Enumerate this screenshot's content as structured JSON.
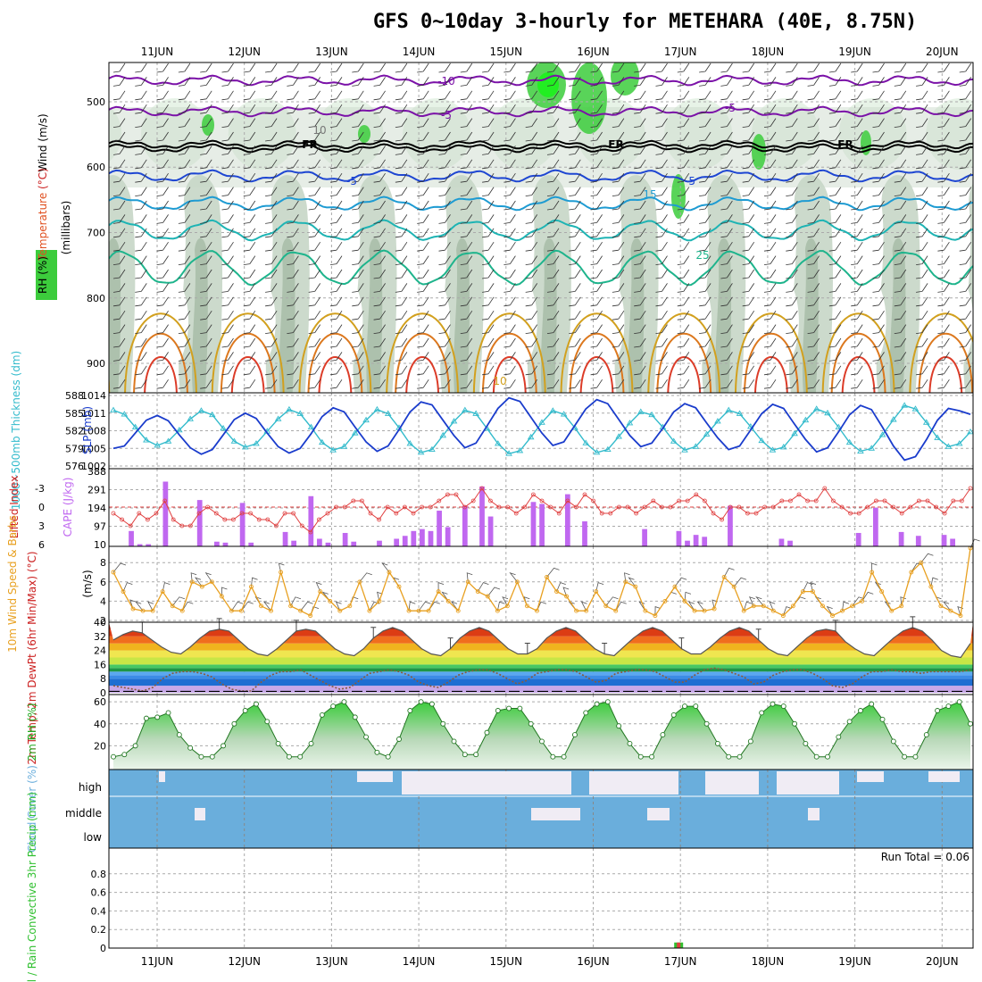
{
  "title": "GFS 0~10day 3-hourly for METEHARA (40E, 8.75N)",
  "colors": {
    "temp_neg": "#7b12a8",
    "temp_cold": "#1e46d2",
    "temp_mid": "#1e9bd2",
    "temp_warm": "#1eb4b4",
    "temp_warmer": "#1eb48c",
    "temp_hot1": "#d2a01e",
    "temp_hot2": "#dc781e",
    "temp_hot3": "#dc3c28",
    "rh_green": "#3ccc3c",
    "thickness": "#33bbcc",
    "slp": "#1a3ccc",
    "lifted_index": "#e04040",
    "cape": "#c068f0",
    "wind_speed": "#e8a020",
    "rh2m": "#30b830",
    "cloud": "#6aaedc",
    "cloud_clear": "#f0ecf4",
    "precip_total": "#30c030",
    "precip_conv": "#e04040"
  },
  "chart_data": [
    {
      "type": "heatmap",
      "name": "upper-air cross section",
      "x_dates": [
        "11JUN",
        "12JUN",
        "13JUN",
        "14JUN",
        "15JUN",
        "16JUN",
        "17JUN",
        "18JUN",
        "19JUN",
        "20JUN"
      ],
      "ylabel": "(millibars)",
      "y_ticks": [
        500,
        600,
        700,
        800,
        900
      ],
      "ylim": [
        440,
        945
      ],
      "side_labels": [
        "Wind (m/s)",
        "Temperature (°C)",
        "RH (%)"
      ],
      "contour_labels": [
        "-10",
        "-5",
        "-5",
        "FR",
        "FR",
        "FR",
        "-5",
        "-5",
        "10",
        "15",
        "25",
        "10"
      ],
      "freezing_level_mb": 570
    },
    {
      "type": "line",
      "name": "thickness and SLP",
      "ylabel_left": "1000~500mb Thickness (dm)",
      "ylabel_right": "SLP (mb)",
      "left_ticks": [
        "588",
        "585",
        "582",
        "579",
        "576"
      ],
      "right_ticks": [
        "1014",
        "1011",
        "1008",
        "1005",
        "1002"
      ],
      "series": [
        {
          "name": "1000~500mb Thickness",
          "values": [
            585.5,
            584.8,
            582.6,
            580.4,
            579.5,
            580.2,
            582.1,
            584.0,
            585.4,
            584.7,
            582.4,
            580.2,
            579.2,
            579.8,
            581.9,
            584.0,
            585.6,
            584.9,
            582.6,
            580.0,
            578.7,
            579.3,
            581.6,
            583.8,
            585.6,
            584.9,
            582.5,
            579.8,
            578.3,
            578.8,
            581.2,
            583.6,
            585.5,
            584.9,
            582.4,
            579.8,
            578.1,
            578.6,
            580.9,
            583.4,
            585.4,
            584.8,
            582.5,
            579.9,
            578.3,
            578.8,
            581.0,
            583.3,
            585.2,
            584.7,
            582.6,
            580.2,
            578.7,
            579.3,
            581.4,
            583.6,
            585.5,
            584.9,
            582.7,
            580.3,
            578.7,
            579.2,
            581.5,
            583.8,
            585.7,
            585.0,
            582.6,
            580.0,
            578.5,
            579.0,
            581.3,
            583.9,
            586.3,
            585.7,
            583.4,
            580.8,
            579.3,
            579.8,
            581.8
          ]
        },
        {
          "name": "SLP",
          "values": [
            1005.0,
            1005.4,
            1007.6,
            1009.8,
            1010.6,
            1009.7,
            1007.3,
            1005.1,
            1004.0,
            1004.8,
            1007.3,
            1009.9,
            1011.0,
            1010.1,
            1007.6,
            1005.3,
            1004.2,
            1005.0,
            1007.5,
            1010.4,
            1011.9,
            1011.2,
            1008.6,
            1006.1,
            1004.5,
            1005.4,
            1008.2,
            1011.2,
            1012.9,
            1012.4,
            1009.8,
            1007.2,
            1005.1,
            1005.9,
            1008.8,
            1011.8,
            1013.6,
            1013.0,
            1010.3,
            1007.6,
            1005.5,
            1006.1,
            1008.9,
            1011.7,
            1013.3,
            1012.6,
            1009.9,
            1007.2,
            1005.3,
            1005.9,
            1008.4,
            1011.2,
            1012.6,
            1011.9,
            1009.3,
            1006.8,
            1004.8,
            1005.4,
            1008.1,
            1010.9,
            1012.5,
            1011.8,
            1009.1,
            1006.5,
            1004.4,
            1005.1,
            1007.8,
            1010.7,
            1012.3,
            1011.6,
            1008.6,
            1005.4,
            1003.0,
            1003.6,
            1006.5,
            1009.8,
            1011.8,
            1011.4,
            1010.8
          ]
        }
      ]
    },
    {
      "type": "bar",
      "name": "lifted index and CAPE",
      "ylabel_left": "Lifted Index",
      "ylabel_right": "CAPE (J/kg)",
      "left_ticks": [
        "-3",
        "0",
        "3",
        "6"
      ],
      "right_ticks": [
        "388",
        "291",
        "194",
        "97",
        "10"
      ],
      "series": [
        {
          "name": "CAPE",
          "type": "bar",
          "values": [
            10,
            10,
            80,
            12,
            12,
            10,
            335,
            10,
            10,
            10,
            240,
            10,
            25,
            20,
            10,
            225,
            20,
            10,
            10,
            10,
            75,
            30,
            10,
            260,
            40,
            20,
            10,
            70,
            25,
            10,
            10,
            30,
            10,
            40,
            55,
            80,
            90,
            80,
            185,
            100,
            10,
            210,
            10,
            310,
            155,
            10,
            10,
            10,
            10,
            230,
            220,
            10,
            10,
            270,
            10,
            130,
            10,
            10,
            10,
            10,
            10,
            10,
            90,
            10,
            10,
            10,
            80,
            30,
            60,
            50,
            10,
            10,
            210,
            10,
            10,
            10,
            10,
            10,
            40,
            30,
            10,
            10,
            10,
            10,
            10,
            10,
            10,
            70,
            10,
            200,
            10,
            10,
            75,
            10,
            55,
            10,
            10,
            60,
            40,
            10,
            10
          ]
        },
        {
          "name": "Lifted Index",
          "type": "line",
          "values": [
            1,
            2,
            3,
            1,
            2,
            1,
            -1,
            2,
            3,
            3,
            1,
            0,
            1,
            2,
            2,
            1,
            1,
            2,
            2,
            3,
            1,
            1,
            3,
            4,
            2,
            1,
            0,
            0,
            -1,
            -1,
            1,
            2,
            0,
            1,
            0,
            1,
            0,
            0,
            -1,
            -2,
            -2,
            0,
            -1,
            -3,
            -1,
            0,
            0,
            1,
            0,
            -2,
            -1,
            0,
            1,
            -1,
            0,
            -2,
            -1,
            1,
            1,
            0,
            0,
            1,
            0,
            -1,
            0,
            0,
            -1,
            -1,
            -2,
            -1,
            1,
            2,
            0,
            0,
            1,
            1,
            0,
            0,
            -1,
            -1,
            -2,
            -1,
            -1,
            -3,
            -1,
            0,
            1,
            1,
            0,
            -1,
            -1,
            0,
            1,
            0,
            -1,
            -1,
            0,
            1,
            -1,
            -1,
            -3
          ]
        }
      ]
    },
    {
      "type": "line",
      "name": "10m wind",
      "ylabel_left": "10m Wind Speed & Barbs",
      "ylabel_right": "(m/s)",
      "y_ticks": [
        "8",
        "6",
        "4",
        "2"
      ],
      "ylim": [
        2,
        9.5
      ],
      "series": [
        {
          "name": "10m Wind Speed",
          "values": [
            7,
            5,
            3.2,
            3,
            3,
            5,
            3.5,
            3,
            6,
            5.5,
            6,
            4.5,
            3,
            3,
            5.5,
            3.5,
            3,
            7,
            3.5,
            3,
            2.5,
            5,
            4,
            3,
            3.5,
            6,
            3,
            4,
            7,
            5.5,
            3,
            3,
            3,
            5,
            4,
            3,
            6,
            5,
            4.5,
            3,
            3.5,
            6,
            3.5,
            3,
            6.5,
            5,
            4.5,
            3,
            3,
            5,
            3.5,
            3,
            6,
            5.5,
            3,
            2.5,
            4,
            5.5,
            4,
            3,
            3,
            3.2,
            6.5,
            5.5,
            3,
            3.5,
            3.5,
            3,
            2.5,
            3.5,
            5,
            5,
            3.5,
            2.5,
            3,
            3.5,
            4,
            7,
            5,
            3,
            3.5,
            7,
            8,
            5.5,
            3.5,
            3,
            2.5,
            9.5
          ]
        }
      ]
    },
    {
      "type": "area",
      "name": "2m temperature and dew point",
      "ylabel": "2m Temp, 2m DewPt (6hr Min/Max) (°C)",
      "y_ticks": [
        "40",
        "32",
        "24",
        "16",
        "8",
        "0"
      ],
      "ylim": [
        0,
        40
      ],
      "series": [
        {
          "name": "2m Temp",
          "values": [
            30,
            33,
            35,
            34,
            30,
            26,
            23,
            22,
            26,
            31,
            35,
            36,
            35,
            30,
            25,
            22,
            21,
            25,
            30,
            35,
            36,
            35,
            30,
            25,
            22,
            21,
            25,
            31,
            35,
            37,
            35,
            30,
            25,
            22,
            21,
            25,
            31,
            35,
            37,
            35,
            30,
            25,
            22,
            22,
            25,
            31,
            35,
            37,
            35,
            30,
            25,
            22,
            21,
            26,
            31,
            35,
            37,
            35,
            30,
            25,
            22,
            22,
            26,
            31,
            35,
            37,
            35,
            30,
            25,
            22,
            21,
            26,
            31,
            35,
            36,
            35,
            29,
            25,
            22,
            21,
            26,
            31,
            35,
            37,
            35,
            30,
            24,
            21,
            20,
            28
          ]
        },
        {
          "name": "2m DewPt",
          "values": [
            4,
            3,
            2,
            1,
            3,
            8,
            11,
            12,
            12,
            11,
            9,
            5,
            2,
            1,
            1,
            6,
            10,
            12,
            12,
            13,
            10,
            7,
            4,
            2,
            3,
            7,
            11,
            12,
            13,
            12,
            10,
            6,
            4,
            3,
            6,
            10,
            12,
            13,
            13,
            11,
            8,
            5,
            7,
            11,
            12,
            13,
            13,
            12,
            9,
            6,
            7,
            11,
            12,
            13,
            13,
            12,
            9,
            6,
            6,
            10,
            13,
            14,
            13,
            11,
            9,
            5,
            6,
            10,
            12,
            13,
            13,
            11,
            8,
            4,
            3,
            5,
            9,
            12,
            12,
            13,
            12,
            12,
            11,
            12,
            12,
            12,
            12,
            13
          ]
        }
      ]
    },
    {
      "type": "area",
      "name": "2m relative humidity",
      "ylabel": "2m RH (%)",
      "y_ticks": [
        "60",
        "40",
        "20"
      ],
      "ylim": [
        0,
        65
      ],
      "values": [
        10,
        12,
        20,
        45,
        46,
        50,
        30,
        18,
        10,
        10,
        20,
        40,
        52,
        58,
        42,
        22,
        10,
        10,
        22,
        48,
        56,
        60,
        46,
        28,
        14,
        10,
        26,
        52,
        60,
        58,
        40,
        24,
        12,
        12,
        32,
        52,
        54,
        54,
        40,
        24,
        10,
        10,
        30,
        50,
        58,
        60,
        38,
        22,
        10,
        10,
        30,
        48,
        56,
        56,
        40,
        22,
        10,
        10,
        24,
        50,
        58,
        56,
        40,
        22,
        10,
        10,
        28,
        42,
        52,
        58,
        44,
        24,
        10,
        10,
        30,
        52,
        56,
        60,
        40
      ]
    },
    {
      "type": "heatmap",
      "name": "cloud cover",
      "ylabel": "Cloud Cover (%)",
      "rows": [
        "high",
        "middle",
        "low"
      ]
    },
    {
      "type": "bar",
      "name": "precipitation",
      "ylabel": "Total / Rain Convective 3hr Precip (mm)",
      "y_ticks": [
        "0.8",
        "0.6",
        "0.4",
        "0.2",
        "0"
      ],
      "ylim": [
        0,
        1.0
      ],
      "run_total": "Run Total = 0.06",
      "event_date": "17JUN",
      "event_value": 0.06
    }
  ]
}
